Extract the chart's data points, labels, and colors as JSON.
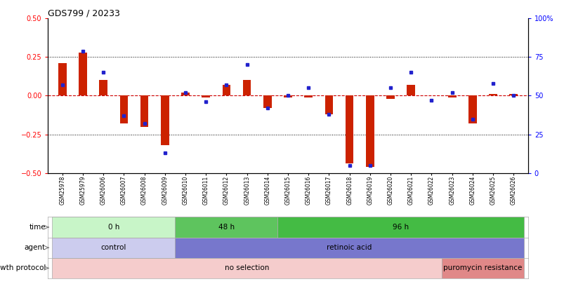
{
  "title": "GDS799 / 20233",
  "samples": [
    "GSM25978",
    "GSM25979",
    "GSM26006",
    "GSM26007",
    "GSM26008",
    "GSM26009",
    "GSM26010",
    "GSM26011",
    "GSM26012",
    "GSM26013",
    "GSM26014",
    "GSM26015",
    "GSM26016",
    "GSM26017",
    "GSM26018",
    "GSM26019",
    "GSM26020",
    "GSM26021",
    "GSM26022",
    "GSM26023",
    "GSM26024",
    "GSM26025",
    "GSM26026"
  ],
  "log_ratio": [
    0.21,
    0.28,
    0.1,
    -0.18,
    -0.2,
    -0.32,
    0.02,
    -0.01,
    0.07,
    0.1,
    -0.08,
    -0.01,
    -0.01,
    -0.12,
    -0.44,
    -0.46,
    -0.02,
    0.07,
    0.0,
    -0.01,
    -0.18,
    0.01,
    0.01
  ],
  "percentile_rank": [
    57,
    79,
    65,
    37,
    32,
    13,
    52,
    46,
    57,
    70,
    42,
    50,
    55,
    38,
    5,
    5,
    55,
    65,
    47,
    52,
    35,
    58,
    50
  ],
  "ylim_left": [
    -0.5,
    0.5
  ],
  "ylim_right": [
    0,
    100
  ],
  "yticks_left": [
    -0.5,
    -0.25,
    0,
    0.25,
    0.5
  ],
  "yticks_right": [
    0,
    25,
    50,
    75,
    100
  ],
  "hline_dotted": [
    0.25,
    -0.25
  ],
  "time_groups": [
    {
      "label": "0 h",
      "start": 0,
      "end": 6,
      "color": "#c8f5c8"
    },
    {
      "label": "48 h",
      "start": 6,
      "end": 11,
      "color": "#5ec45e"
    },
    {
      "label": "96 h",
      "start": 11,
      "end": 23,
      "color": "#44bb44"
    }
  ],
  "agent_groups": [
    {
      "label": "control",
      "start": 0,
      "end": 6,
      "color": "#ccccee"
    },
    {
      "label": "retinoic acid",
      "start": 6,
      "end": 23,
      "color": "#7777cc"
    }
  ],
  "growth_groups": [
    {
      "label": "no selection",
      "start": 0,
      "end": 19,
      "color": "#f5cccc"
    },
    {
      "label": "puromycin resistance",
      "start": 19,
      "end": 23,
      "color": "#e08888"
    }
  ],
  "row_labels": [
    "time",
    "agent",
    "growth protocol"
  ],
  "bar_color": "#cc2200",
  "dot_color": "#2222cc",
  "zero_line_color": "#cc0000",
  "n_samples": 23
}
